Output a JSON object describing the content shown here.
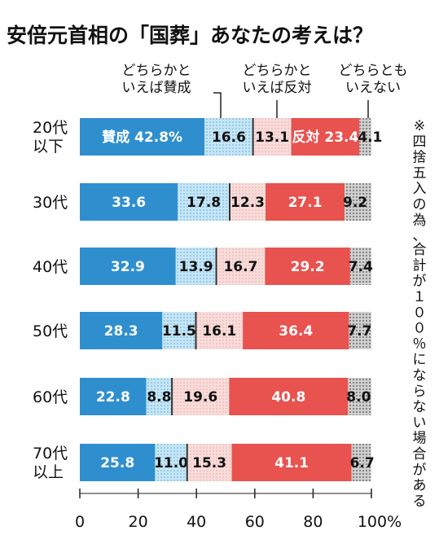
{
  "chart_data": {
    "type": "bar",
    "orientation": "horizontal",
    "stacked": true,
    "title": "安倍元首相の「国葬」あなたの考えは？",
    "categories": [
      [
        "20代",
        "以下"
      ],
      [
        "30代"
      ],
      [
        "40代"
      ],
      [
        "50代"
      ],
      [
        "60代"
      ],
      [
        "70代",
        "以上"
      ]
    ],
    "series": [
      {
        "name": "賛成",
        "color": "#2f8fce",
        "label_color": "#ffffff",
        "pattern": "solid",
        "values": [
          42.8,
          33.6,
          32.9,
          28.3,
          22.8,
          25.8
        ]
      },
      {
        "name": "どちらかといえば賛成",
        "color": "#bfe3f5",
        "label_color": "#111111",
        "pattern": "dots-blue",
        "values": [
          16.6,
          17.8,
          13.9,
          11.5,
          8.8,
          11.0
        ]
      },
      {
        "name": "どちらかといえば反対",
        "color": "#f6d5d3",
        "label_color": "#111111",
        "pattern": "dots-pink",
        "values": [
          13.1,
          12.3,
          16.7,
          16.1,
          19.6,
          15.3
        ]
      },
      {
        "name": "反対",
        "color": "#e8524f",
        "label_color": "#ffffff",
        "pattern": "solid",
        "values": [
          23.4,
          27.1,
          29.2,
          36.4,
          40.8,
          41.1
        ]
      },
      {
        "name": "どちらともいえない",
        "color": "#bdbdbd",
        "label_color": "#111111",
        "pattern": "dots-gray",
        "values": [
          4.1,
          9.2,
          7.4,
          7.7,
          8.0,
          6.7
        ]
      }
    ],
    "first_row_labels": [
      "賛成 42.8%",
      "16.6",
      "13.1",
      "反対 23.4",
      "4.1"
    ],
    "value_labels": [
      [
        "33.6",
        "17.8",
        "12.3",
        "27.1",
        "9.2"
      ],
      [
        "32.9",
        "13.9",
        "16.7",
        "29.2",
        "7.4"
      ],
      [
        "28.3",
        "11.5",
        "16.1",
        "36.4",
        "7.7"
      ],
      [
        "22.8",
        "8.8",
        "19.6",
        "40.8",
        "8.0"
      ],
      [
        "25.8",
        "11.0",
        "15.3",
        "41.1",
        "6.7"
      ]
    ],
    "legend_labels": [
      [
        "どちらかと",
        "いえば賛成"
      ],
      [
        "どちらかと",
        "いえば反対"
      ],
      [
        "どちらとも",
        "いえない"
      ]
    ],
    "xlim": [
      0,
      100
    ],
    "xticks": [
      "0",
      "20",
      "40",
      "60",
      "80",
      "100%"
    ],
    "note": "※四捨五入の為、合計が１００％にならない場合がある"
  }
}
